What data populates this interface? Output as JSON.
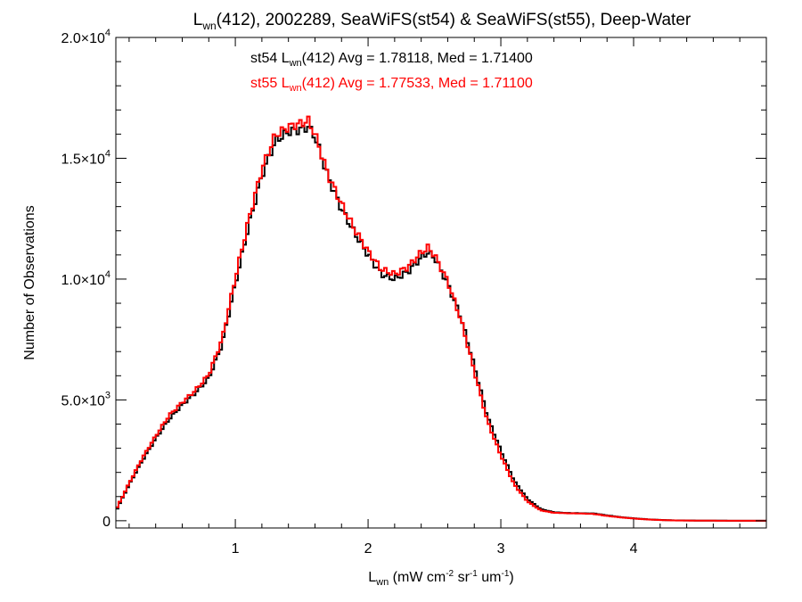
{
  "chart_data": {
    "type": "step-histogram",
    "title": {
      "main": "L",
      "sub": "wn",
      "rest": "(412), 2002289, SeaWiFS(st54) & SeaWiFS(st55), Deep-Water"
    },
    "xlabel": {
      "main": "L",
      "sub": "wn",
      "rest1": " (mW cm",
      "sup1": "-2",
      "rest2": " sr",
      "sup2": "-1",
      "rest3": " um",
      "sup3": "-1",
      "rest4": ")"
    },
    "ylabel": "Number of Observations",
    "xlim": [
      0.1,
      5.0
    ],
    "ylim": [
      -300,
      20000
    ],
    "x_ticks": [
      {
        "value": 1,
        "label": "1"
      },
      {
        "value": 2,
        "label": "2"
      },
      {
        "value": 3,
        "label": "3"
      },
      {
        "value": 4,
        "label": "4"
      }
    ],
    "y_ticks": [
      {
        "value": 0,
        "mant": "0",
        "exp": ""
      },
      {
        "value": 5000,
        "mant": "5.0×10",
        "exp": "3"
      },
      {
        "value": 10000,
        "mant": "1.0×10",
        "exp": "4"
      },
      {
        "value": 15000,
        "mant": "1.5×10",
        "exp": "4"
      },
      {
        "value": 20000,
        "mant": "2.0×10",
        "exp": "4"
      }
    ],
    "annotations": [
      {
        "prefix": "st54 L",
        "sub": "wn",
        "rest": "(412) Avg = 1.78118, Med = 1.71400",
        "color": "#000000"
      },
      {
        "prefix": "st55 L",
        "sub": "wn",
        "rest": "(412) Avg = 1.77533, Med = 1.71100",
        "color": "#ff0000"
      }
    ],
    "bin_width": 0.02,
    "series": [
      {
        "name": "st54",
        "color": "#000000",
        "x": [
          0.1,
          0.2,
          0.3,
          0.4,
          0.5,
          0.6,
          0.7,
          0.8,
          0.9,
          1.0,
          1.1,
          1.2,
          1.3,
          1.4,
          1.5,
          1.55,
          1.6,
          1.7,
          1.8,
          1.9,
          2.0,
          2.1,
          2.2,
          2.3,
          2.4,
          2.45,
          2.5,
          2.6,
          2.7,
          2.8,
          2.9,
          3.0,
          3.1,
          3.2,
          3.3,
          3.4,
          3.5,
          3.6,
          3.7,
          3.8,
          3.9,
          4.0,
          4.1,
          4.2,
          4.3,
          4.5,
          4.7,
          5.0
        ],
        "y": [
          400,
          1500,
          2500,
          3400,
          4200,
          4800,
          5300,
          5900,
          7300,
          9800,
          12200,
          14300,
          15700,
          16100,
          16200,
          16300,
          15900,
          14200,
          12900,
          11900,
          11000,
          10200,
          10000,
          10300,
          10900,
          11100,
          10900,
          9800,
          8400,
          6400,
          4300,
          2900,
          1650,
          900,
          480,
          350,
          320,
          310,
          300,
          220,
          150,
          100,
          60,
          35,
          15,
          5,
          2,
          0
        ]
      },
      {
        "name": "st55",
        "color": "#ff0000",
        "x": [
          0.1,
          0.2,
          0.3,
          0.4,
          0.5,
          0.6,
          0.7,
          0.8,
          0.9,
          1.0,
          1.1,
          1.2,
          1.3,
          1.4,
          1.5,
          1.55,
          1.6,
          1.7,
          1.8,
          1.9,
          2.0,
          2.1,
          2.2,
          2.3,
          2.4,
          2.45,
          2.5,
          2.6,
          2.7,
          2.8,
          2.9,
          3.0,
          3.1,
          3.2,
          3.3,
          3.4,
          3.5,
          3.6,
          3.7,
          3.8,
          3.9,
          4.0,
          4.1,
          4.2,
          4.3,
          4.5,
          4.7,
          5.0
        ],
        "y": [
          450,
          1550,
          2600,
          3500,
          4350,
          4900,
          5400,
          6050,
          7500,
          10050,
          12450,
          14550,
          15950,
          16300,
          16450,
          16550,
          16000,
          14300,
          13100,
          12050,
          11150,
          10400,
          10200,
          10500,
          11100,
          11300,
          11000,
          9900,
          8300,
          6200,
          4100,
          2700,
          1500,
          800,
          430,
          330,
          310,
          300,
          280,
          200,
          140,
          90,
          55,
          30,
          12,
          4,
          1,
          0
        ]
      }
    ]
  }
}
